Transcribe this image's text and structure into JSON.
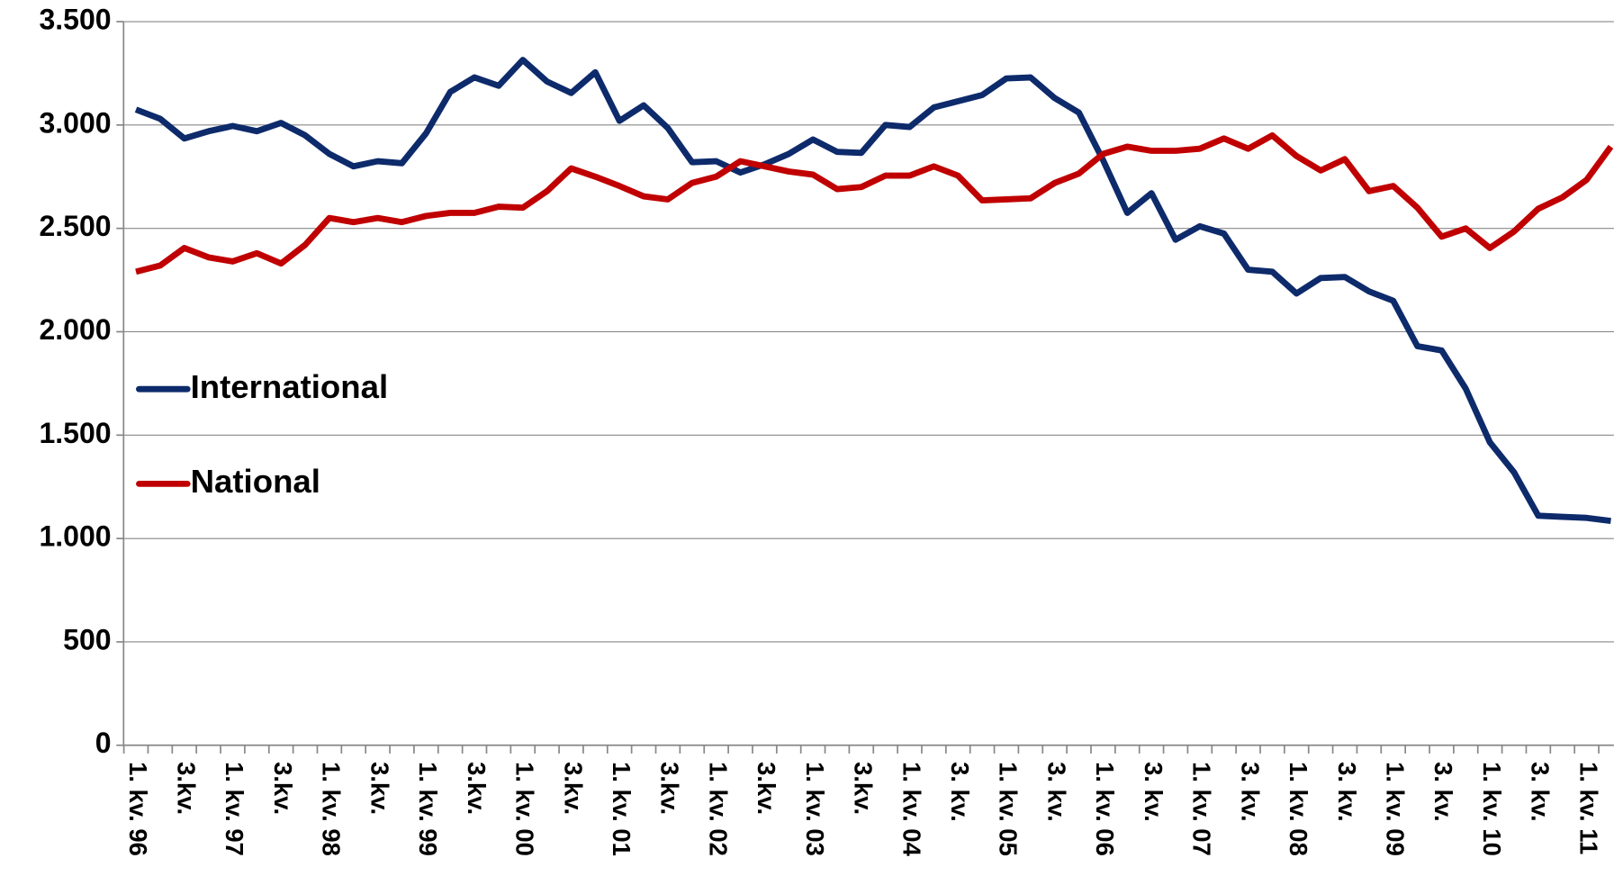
{
  "chart_data": {
    "type": "line",
    "categories": [
      "1. kv. 96",
      null,
      "3.kv.",
      null,
      "1. kv. 97",
      null,
      "3.kv.",
      null,
      "1. kv. 98",
      null,
      "3.kv.",
      null,
      "1. kv. 99",
      null,
      "3.kv.",
      null,
      "1. kv. 00",
      null,
      "3.kv.",
      null,
      "1. kv. 01",
      null,
      "3.kv.",
      null,
      "1. kv. 02",
      null,
      "3.kv.",
      null,
      "1. kv. 03",
      null,
      "3.kv.",
      null,
      "1. kv. 04",
      null,
      "3. kv.",
      null,
      "1. kv. 05",
      null,
      "3. kv.",
      null,
      "1. kv. 06",
      null,
      "3. kv.",
      null,
      "1. kv. 07",
      null,
      "3. kv.",
      null,
      "1. kv. 08",
      null,
      "3. kv.",
      null,
      "1. kv. 09",
      null,
      "3. kv.",
      null,
      "1. kv. 10",
      null,
      "3. kv.",
      null,
      "1. kv. 11",
      null
    ],
    "series": [
      {
        "name": "International",
        "color": "#0d2a6b",
        "values": [
          3075,
          3030,
          2935,
          2970,
          2995,
          2970,
          3010,
          2950,
          2860,
          2800,
          2825,
          2815,
          2960,
          3160,
          3230,
          3190,
          3315,
          3210,
          3155,
          3255,
          3020,
          3095,
          2985,
          2820,
          2825,
          2770,
          2810,
          2860,
          2930,
          2870,
          2865,
          3000,
          2990,
          3085,
          3115,
          3145,
          3225,
          3230,
          3130,
          3060,
          2830,
          2575,
          2670,
          2445,
          2510,
          2475,
          2300,
          2290,
          2185,
          2260,
          2265,
          2195,
          2150,
          1930,
          1910,
          1725,
          1465,
          1320,
          1110,
          1105,
          1100,
          1085
        ]
      },
      {
        "name": "National",
        "color": "#c00000",
        "values": [
          2290,
          2320,
          2405,
          2360,
          2340,
          2380,
          2330,
          2420,
          2550,
          2530,
          2550,
          2530,
          2560,
          2575,
          2575,
          2605,
          2600,
          2680,
          2790,
          2750,
          2705,
          2655,
          2640,
          2720,
          2750,
          2825,
          2800,
          2775,
          2760,
          2690,
          2700,
          2755,
          2755,
          2800,
          2755,
          2635,
          2640,
          2645,
          2720,
          2765,
          2860,
          2895,
          2875,
          2875,
          2885,
          2935,
          2885,
          2950,
          2850,
          2780,
          2835,
          2680,
          2705,
          2600,
          2460,
          2500,
          2405,
          2485,
          2595,
          2650,
          2735,
          2895
        ]
      }
    ],
    "ylim": [
      0,
      3500
    ],
    "yticks": [
      0,
      500,
      {
        "value": 1000,
        "label": "1.000"
      },
      {
        "value": 1500,
        "label": "1.500"
      },
      {
        "value": 2000,
        "label": "2.000"
      },
      {
        "value": 2500,
        "label": "2.500"
      },
      {
        "value": 3000,
        "label": "3.000"
      },
      {
        "value": 3500,
        "label": "3.500"
      }
    ],
    "grid": true,
    "legend": "left"
  }
}
